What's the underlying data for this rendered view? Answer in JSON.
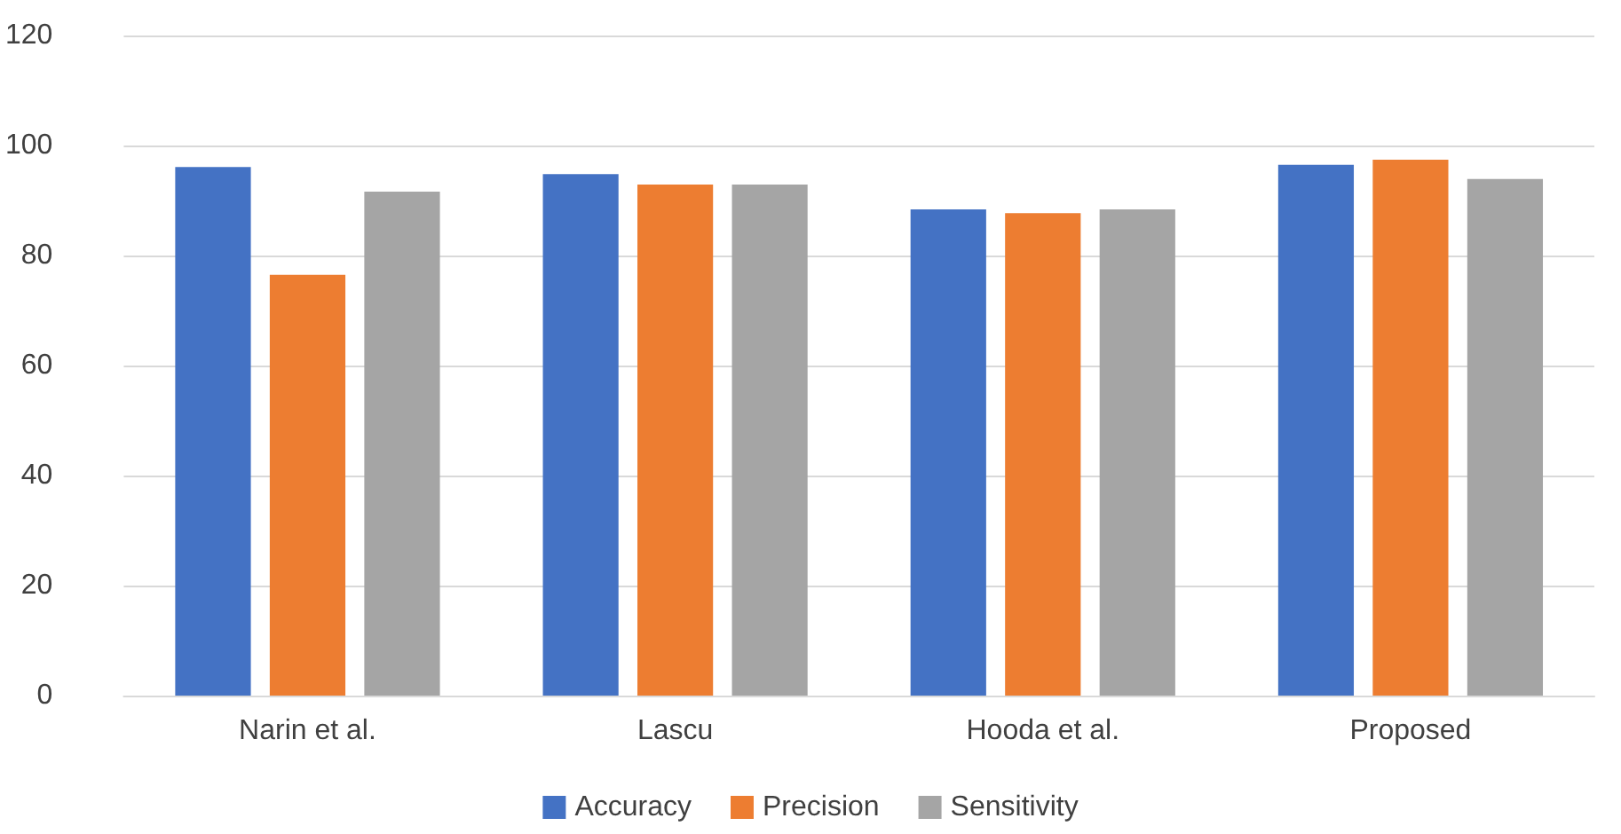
{
  "chart_data": {
    "type": "bar",
    "categories": [
      "Narin et al.",
      "Lascu",
      "Hooda et al.",
      "Proposed"
    ],
    "series": [
      {
        "name": "Accuracy",
        "color": "#4472c4",
        "values": [
          96.1,
          94.8,
          88.4,
          96.5
        ]
      },
      {
        "name": "Precision",
        "color": "#ed7d31",
        "values": [
          76.5,
          92.9,
          87.7,
          97.4
        ]
      },
      {
        "name": "Sensitivity",
        "color": "#a5a5a5",
        "values": [
          91.6,
          92.9,
          88.4,
          93.9
        ]
      }
    ],
    "ylim": [
      0,
      120
    ],
    "yticks": [
      0,
      20,
      40,
      60,
      80,
      100,
      120
    ],
    "grid": "y",
    "legend": "bottom"
  }
}
